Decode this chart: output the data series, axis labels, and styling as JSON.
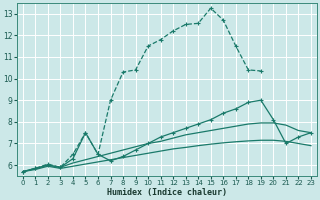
{
  "xlabel": "Humidex (Indice chaleur)",
  "bg_color": "#cce8e8",
  "grid_color": "#ffffff",
  "line_color": "#1a7a6a",
  "xlim": [
    -0.5,
    23.5
  ],
  "ylim": [
    5.5,
    13.5
  ],
  "yticks": [
    6,
    7,
    8,
    9,
    10,
    11,
    12,
    13
  ],
  "xticks": [
    0,
    1,
    2,
    3,
    4,
    5,
    6,
    7,
    8,
    9,
    10,
    11,
    12,
    13,
    14,
    15,
    16,
    17,
    18,
    19,
    20,
    21,
    22,
    23
  ],
  "line1_x": [
    0,
    1,
    2,
    3,
    4,
    5,
    6,
    7,
    8,
    9,
    10,
    11,
    12,
    13,
    14,
    15,
    16,
    17,
    18,
    19
  ],
  "line1_y": [
    5.7,
    5.85,
    6.05,
    5.9,
    6.5,
    7.5,
    6.5,
    9.0,
    10.3,
    10.4,
    11.5,
    11.8,
    12.2,
    12.5,
    12.55,
    13.25,
    12.7,
    11.5,
    10.4,
    10.35
  ],
  "line1_style": "--",
  "line2_x": [
    0,
    1,
    2,
    3,
    4,
    5,
    6,
    7,
    8,
    9,
    10,
    11,
    12,
    13,
    14,
    15,
    16,
    17,
    18,
    19,
    20,
    21,
    22,
    23
  ],
  "line2_y": [
    5.7,
    5.85,
    6.0,
    5.9,
    6.3,
    7.5,
    6.5,
    6.2,
    6.4,
    6.7,
    7.0,
    7.3,
    7.5,
    7.7,
    7.9,
    8.1,
    8.4,
    8.6,
    8.9,
    9.0,
    8.1,
    7.0,
    7.3,
    7.5
  ],
  "line2_style": "-",
  "line3_x": [
    0,
    1,
    2,
    3,
    4,
    5,
    6,
    7,
    8,
    9,
    10,
    11,
    12,
    13,
    14,
    15,
    16,
    17,
    18,
    19,
    20,
    21,
    22,
    23
  ],
  "line3_y": [
    5.7,
    5.85,
    6.0,
    5.9,
    6.1,
    6.25,
    6.4,
    6.55,
    6.7,
    6.85,
    7.0,
    7.1,
    7.25,
    7.4,
    7.5,
    7.6,
    7.7,
    7.8,
    7.9,
    7.95,
    7.95,
    7.85,
    7.6,
    7.5
  ],
  "line4_x": [
    0,
    1,
    2,
    3,
    4,
    5,
    6,
    7,
    8,
    9,
    10,
    11,
    12,
    13,
    14,
    15,
    16,
    17,
    18,
    19,
    20,
    21,
    22,
    23
  ],
  "line4_y": [
    5.7,
    5.8,
    5.95,
    5.85,
    5.95,
    6.05,
    6.15,
    6.25,
    6.35,
    6.45,
    6.55,
    6.65,
    6.75,
    6.82,
    6.9,
    6.97,
    7.03,
    7.08,
    7.12,
    7.15,
    7.15,
    7.1,
    7.0,
    6.9
  ]
}
